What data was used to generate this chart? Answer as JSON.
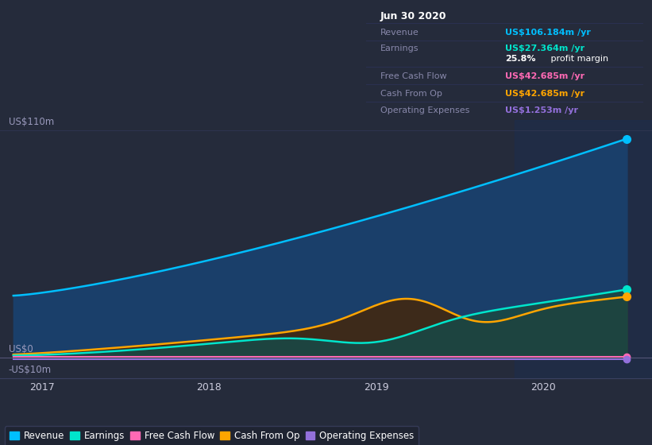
{
  "bg_color": "#252b3b",
  "plot_bg_color": "#252b3b",
  "dark_bg": "#1a1f2e",
  "info_bg": "#0a0d16",
  "ylim": [
    -10,
    115
  ],
  "xlim_start": 2016.75,
  "xlim_end": 2020.65,
  "xticks": [
    2017,
    2018,
    2019,
    2020
  ],
  "ylabel_top": "US$110m",
  "ylabel_zero": "US$0",
  "ylabel_neg": "-US$10m",
  "grid_color": "#2e3550",
  "grid_zero_color": "#555577",
  "series_colors": {
    "revenue": "#00bfff",
    "earnings": "#00e5cc",
    "free_cash_flow": "#ff69b4",
    "cash_from_op": "#ffa500",
    "operating_expenses": "#9370db"
  },
  "fill_revenue": "#1a3f6a",
  "fill_earnings": "#1a4845",
  "fill_cashop": "#3d2a1a",
  "shade_color": "#1e2d4a",
  "info_box": {
    "date": "Jun 30 2020",
    "revenue_label": "Revenue",
    "revenue_value": "US$106.184m /yr",
    "revenue_color": "#00bfff",
    "earnings_label": "Earnings",
    "earnings_value": "US$27.364m /yr",
    "earnings_color": "#00e5cc",
    "profit_margin": "25.8%",
    "profit_margin_text": " profit margin",
    "fcf_label": "Free Cash Flow",
    "fcf_value": "US$42.685m /yr",
    "fcf_color": "#ff69b4",
    "cashop_label": "Cash From Op",
    "cashop_value": "US$42.685m /yr",
    "cashop_color": "#ffa500",
    "opex_label": "Operating Expenses",
    "opex_value": "US$1.253m /yr",
    "opex_color": "#9370db"
  },
  "legend_labels": [
    "Revenue",
    "Earnings",
    "Free Cash Flow",
    "Cash From Op",
    "Operating Expenses"
  ],
  "legend_colors": [
    "#00bfff",
    "#00e5cc",
    "#ff69b4",
    "#ffa500",
    "#9370db"
  ]
}
